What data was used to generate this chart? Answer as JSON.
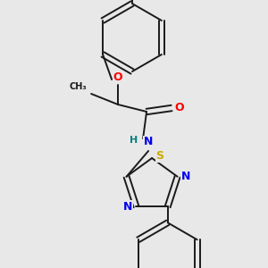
{
  "background_color": "#e8e8e8",
  "bond_color": "#1a1a1a",
  "atom_colors": {
    "F": "#ff44ff",
    "O": "#ff0000",
    "H": "#008080",
    "N": "#0000ee",
    "S": "#ccaa00"
  },
  "figsize": [
    3.0,
    3.0
  ],
  "dpi": 100
}
